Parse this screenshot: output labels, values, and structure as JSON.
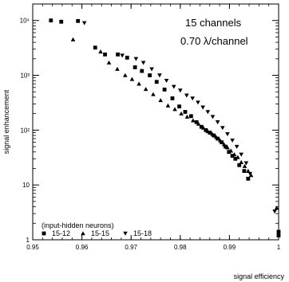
{
  "chart_data": {
    "type": "scatter",
    "xlabel": "signal efficiency",
    "ylabel": "signal enhancement",
    "xlim": [
      0.95,
      1.0
    ],
    "ylim": [
      1,
      20000
    ],
    "yscale": "log",
    "grid": false,
    "legend_position": "bottom-left",
    "x_ticks": [
      "0.95",
      "0.96",
      "0.97",
      "0.98",
      "0.99",
      "1"
    ],
    "x_tick_values": [
      0.95,
      0.96,
      0.97,
      0.98,
      0.99,
      1.0
    ],
    "y_ticks": [
      "1",
      "10",
      "10²",
      "10³",
      "10⁴"
    ],
    "y_tick_values": [
      1,
      10,
      100,
      1000,
      10000
    ],
    "annotations": [
      "15 channels",
      "0.70 λ/channel"
    ],
    "legend_title": "(input-hidden neurons)",
    "series": [
      {
        "name": "15-12",
        "marker": "square",
        "x": [
          0.9537,
          0.9558,
          0.9592,
          0.9627,
          0.9647,
          0.9673,
          0.9692,
          0.9708,
          0.9722,
          0.9738,
          0.9752,
          0.9768,
          0.9784,
          0.9798,
          0.981,
          0.9822,
          0.9833,
          0.9843,
          0.9852,
          0.986,
          0.9868,
          0.9876,
          0.9884,
          0.9892,
          0.9899,
          0.9906,
          0.9912,
          0.992,
          0.993,
          0.9938,
          1.0,
          1.0
        ],
        "y": [
          10000,
          9500,
          9800,
          3200,
          2400,
          2400,
          2100,
          1400,
          1200,
          1000,
          760,
          550,
          380,
          270,
          215,
          180,
          140,
          115,
          100,
          90,
          80,
          70,
          60,
          50,
          40,
          34,
          30,
          23,
          18,
          13,
          1.4,
          1.2
        ]
      },
      {
        "name": "15-15",
        "marker": "triangle-up",
        "x": [
          0.9582,
          0.9638,
          0.9655,
          0.9672,
          0.9688,
          0.9702,
          0.9716,
          0.973,
          0.9745,
          0.976,
          0.9775,
          0.9789,
          0.9802,
          0.9814,
          0.9826,
          0.9837,
          0.9847,
          0.9856,
          0.9865,
          0.9873,
          0.9881,
          0.9889,
          0.9896,
          0.9903,
          0.991,
          0.9917,
          0.9924,
          0.9931,
          0.9938,
          0.9944,
          0.9996
        ],
        "y": [
          4500,
          2700,
          1700,
          1300,
          1000,
          850,
          700,
          560,
          450,
          350,
          280,
          240,
          200,
          175,
          150,
          130,
          110,
          95,
          85,
          75,
          65,
          55,
          48,
          42,
          36,
          32,
          26,
          22,
          18,
          15,
          3.8
        ]
      },
      {
        "name": "15-18",
        "marker": "triangle-down",
        "x": [
          0.9605,
          0.9682,
          0.971,
          0.9725,
          0.9742,
          0.9758,
          0.9772,
          0.9787,
          0.98,
          0.9813,
          0.9825,
          0.9836,
          0.9846,
          0.9856,
          0.9866,
          0.9876,
          0.9886,
          0.9896,
          0.9906,
          0.9915,
          0.9924,
          0.9934,
          0.9942,
          0.9992
        ],
        "y": [
          9000,
          2300,
          2000,
          1700,
          1300,
          1000,
          800,
          620,
          530,
          430,
          380,
          320,
          260,
          215,
          175,
          140,
          110,
          85,
          65,
          50,
          36,
          25,
          16,
          3.3
        ]
      }
    ]
  }
}
